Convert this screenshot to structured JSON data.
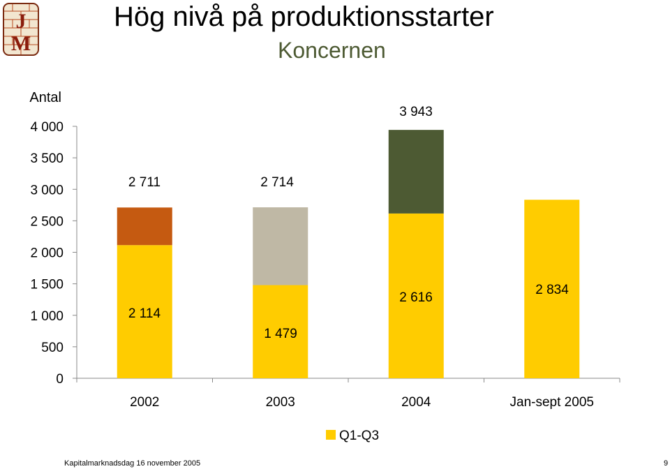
{
  "slide": {
    "title": "Hög nivå på produktionsstarter",
    "subtitle": "Koncernen",
    "footer": "Kapitalmarknadsdag 16 november 2005",
    "page_number": "9",
    "logo_text": "JM"
  },
  "chart_data": {
    "type": "bar",
    "stacked": true,
    "ylabel": "Antal",
    "ylim": [
      0,
      4000
    ],
    "yticks": [
      0,
      500,
      1000,
      1500,
      2000,
      2500,
      3000,
      3500,
      4000
    ],
    "ytick_labels": [
      "0",
      "500",
      "1 000",
      "1 500",
      "2 000",
      "2 500",
      "3 000",
      "3 500",
      "4 000"
    ],
    "categories": [
      "2002",
      "2003",
      "2004",
      "Jan-sept 2005"
    ],
    "base": {
      "legend_label": "Q1-Q3",
      "color": "#ffcc00",
      "values": [
        2114,
        1479,
        2616,
        2834
      ],
      "labels": [
        "2 114",
        "1 479",
        "2 616",
        "2 834"
      ]
    },
    "totals": {
      "values": [
        2711,
        2714,
        3943,
        null
      ],
      "labels": [
        "2 711",
        "2 714",
        "3 943",
        ""
      ]
    },
    "top_colors": [
      "#c55a11",
      "#bfb8a5",
      "#4d5a33",
      ""
    ],
    "legend_position": "bottom-center",
    "grid": false
  }
}
